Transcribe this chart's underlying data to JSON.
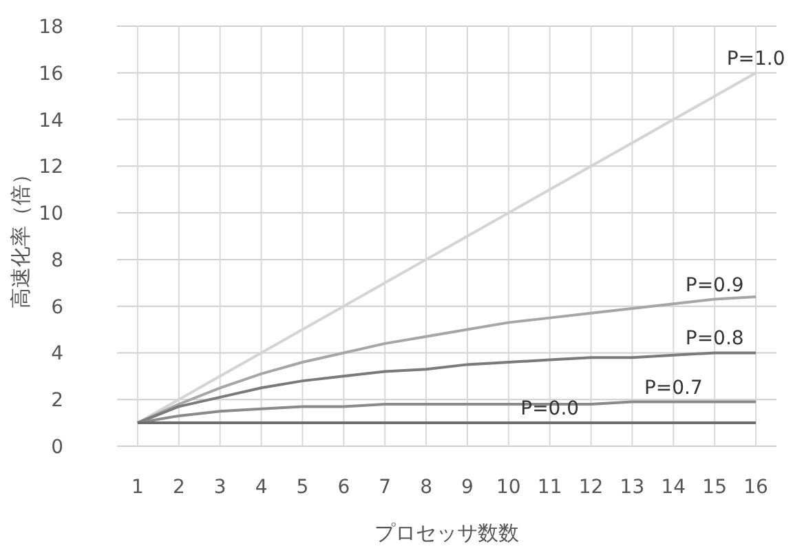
{
  "chart_data": {
    "type": "line",
    "xlabel": "プロセッサ数数",
    "ylabel": "高速化率（倍）",
    "x": [
      1,
      2,
      3,
      4,
      5,
      6,
      7,
      8,
      9,
      10,
      11,
      12,
      13,
      14,
      15,
      16
    ],
    "series": [
      {
        "color": "#d4d4d4",
        "values": [
          1,
          2,
          3,
          4,
          5,
          6,
          7,
          8,
          9,
          10,
          11,
          12,
          13,
          14,
          15,
          16
        ]
      },
      {
        "color": "#a6a6a6",
        "values": [
          1,
          1.8,
          2.5,
          3.1,
          3.6,
          4.0,
          4.4,
          4.7,
          5.0,
          5.3,
          5.5,
          5.7,
          5.9,
          6.1,
          6.3,
          6.4
        ]
      },
      {
        "color": "#7a7a7a",
        "values": [
          1,
          1.7,
          2.1,
          2.5,
          2.8,
          3.0,
          3.2,
          3.3,
          3.5,
          3.6,
          3.7,
          3.8,
          3.8,
          3.9,
          4.0,
          4.0
        ]
      },
      {
        "color": "#8a8a8a",
        "values": [
          1,
          1.3,
          1.5,
          1.6,
          1.7,
          1.7,
          1.8,
          1.8,
          1.8,
          1.8,
          1.8,
          1.8,
          1.9,
          1.9,
          1.9,
          1.9
        ]
      },
      {
        "color": "#6e6e6e",
        "values": [
          1,
          1,
          1,
          1,
          1,
          1,
          1,
          1,
          1,
          1,
          1,
          1,
          1,
          1,
          1,
          1
        ]
      }
    ],
    "annotations": [
      {
        "text": "P=1.0",
        "x": 16,
        "y": 16
      },
      {
        "text": "P=0.9",
        "x": 15,
        "y": 6.3
      },
      {
        "text": "P=0.8",
        "x": 15,
        "y": 4.0
      },
      {
        "text": "P=0.7",
        "x": 14,
        "y": 1.9
      },
      {
        "text": "P=0.0",
        "x": 11,
        "y": 1
      }
    ],
    "xlim": [
      0.5,
      16.5
    ],
    "xticks": [
      1,
      2,
      3,
      4,
      5,
      6,
      7,
      8,
      9,
      10,
      11,
      12,
      13,
      14,
      15,
      16
    ],
    "ylim": [
      0,
      18
    ],
    "yticks": [
      0,
      2,
      4,
      6,
      8,
      10,
      12,
      14,
      16,
      18
    ],
    "grid": true,
    "marker": "none",
    "line_style": "solid"
  }
}
